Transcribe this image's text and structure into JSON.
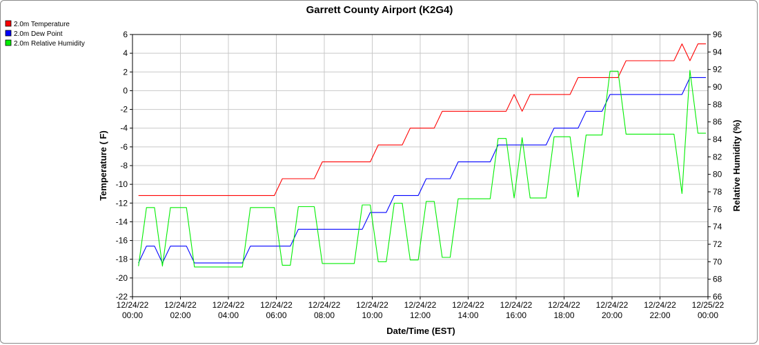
{
  "chart_data": {
    "type": "line",
    "title": "Garrett County Airport (K2G4)",
    "xlabel": "Date/Time (EST)",
    "ylabel": "Temperature ( F)",
    "y2label": "Relative Humidity (%)",
    "xlim": [
      "2022-12-24T00:00",
      "2022-12-25T00:00"
    ],
    "ylim": [
      -22,
      6
    ],
    "y2lim": [
      66,
      96
    ],
    "grid": true,
    "legend_position": "top-left",
    "x_ticks": [
      {
        "date": "12/24/22",
        "time": "00:00",
        "t": "2022-12-24T00:00"
      },
      {
        "date": "12/24/22",
        "time": "02:00",
        "t": "2022-12-24T02:00"
      },
      {
        "date": "12/24/22",
        "time": "04:00",
        "t": "2022-12-24T04:00"
      },
      {
        "date": "12/24/22",
        "time": "06:00",
        "t": "2022-12-24T06:00"
      },
      {
        "date": "12/24/22",
        "time": "08:00",
        "t": "2022-12-24T08:00"
      },
      {
        "date": "12/24/22",
        "time": "10:00",
        "t": "2022-12-24T10:00"
      },
      {
        "date": "12/24/22",
        "time": "12:00",
        "t": "2022-12-24T12:00"
      },
      {
        "date": "12/24/22",
        "time": "14:00",
        "t": "2022-12-24T14:00"
      },
      {
        "date": "12/24/22",
        "time": "16:00",
        "t": "2022-12-24T16:00"
      },
      {
        "date": "12/24/22",
        "time": "18:00",
        "t": "2022-12-24T18:00"
      },
      {
        "date": "12/24/22",
        "time": "20:00",
        "t": "2022-12-24T20:00"
      },
      {
        "date": "12/24/22",
        "time": "22:00",
        "t": "2022-12-24T22:00"
      },
      {
        "date": "12/25/22",
        "time": "00:00",
        "t": "2022-12-25T00:00"
      }
    ],
    "y_ticks": [
      "6",
      "4",
      "2",
      "0",
      "-2",
      "-4",
      "-6",
      "-8",
      "-10",
      "-12",
      "-14",
      "-16",
      "-18",
      "-20",
      "-22"
    ],
    "y2_ticks": [
      "96",
      "94",
      "92",
      "90",
      "88",
      "86",
      "84",
      "82",
      "80",
      "78",
      "76",
      "74",
      "72",
      "70",
      "68",
      "66"
    ],
    "series": [
      {
        "name": "2.0m Temperature",
        "axis": "left",
        "color": "#ff0000",
        "points": [
          [
            "2022-12-24T00:15",
            -11.2
          ],
          [
            "2022-12-24T05:55",
            -11.2
          ],
          [
            "2022-12-24T06:15",
            -9.4
          ],
          [
            "2022-12-24T07:35",
            -9.4
          ],
          [
            "2022-12-24T07:55",
            -7.6
          ],
          [
            "2022-12-24T09:55",
            -7.6
          ],
          [
            "2022-12-24T10:15",
            -5.8
          ],
          [
            "2022-12-24T11:15",
            -5.8
          ],
          [
            "2022-12-24T11:35",
            -4.0
          ],
          [
            "2022-12-24T12:35",
            -4.0
          ],
          [
            "2022-12-24T12:55",
            -2.2
          ],
          [
            "2022-12-24T15:35",
            -2.2
          ],
          [
            "2022-12-24T15:55",
            -0.4
          ],
          [
            "2022-12-24T16:15",
            -2.2
          ],
          [
            "2022-12-24T16:35",
            -0.4
          ],
          [
            "2022-12-24T18:15",
            -0.4
          ],
          [
            "2022-12-24T18:35",
            1.4
          ],
          [
            "2022-12-24T20:15",
            1.4
          ],
          [
            "2022-12-24T20:35",
            3.2
          ],
          [
            "2022-12-24T22:35",
            3.2
          ],
          [
            "2022-12-24T22:55",
            5.0
          ],
          [
            "2022-12-24T23:15",
            3.2
          ],
          [
            "2022-12-24T23:35",
            5.0
          ],
          [
            "2022-12-24T23:55",
            5.0
          ]
        ]
      },
      {
        "name": "2.0m Dew Point",
        "axis": "left",
        "color": "#0000ff",
        "points": [
          [
            "2022-12-24T00:15",
            -18.4
          ],
          [
            "2022-12-24T00:35",
            -16.6
          ],
          [
            "2022-12-24T00:55",
            -16.6
          ],
          [
            "2022-12-24T01:15",
            -18.4
          ],
          [
            "2022-12-24T01:35",
            -16.6
          ],
          [
            "2022-12-24T02:15",
            -16.6
          ],
          [
            "2022-12-24T02:35",
            -18.4
          ],
          [
            "2022-12-24T04:35",
            -18.4
          ],
          [
            "2022-12-24T04:55",
            -16.6
          ],
          [
            "2022-12-24T06:35",
            -16.6
          ],
          [
            "2022-12-24T06:55",
            -14.8
          ],
          [
            "2022-12-24T09:35",
            -14.8
          ],
          [
            "2022-12-24T09:55",
            -13.0
          ],
          [
            "2022-12-24T10:35",
            -13.0
          ],
          [
            "2022-12-24T10:55",
            -11.2
          ],
          [
            "2022-12-24T11:55",
            -11.2
          ],
          [
            "2022-12-24T12:15",
            -9.4
          ],
          [
            "2022-12-24T13:15",
            -9.4
          ],
          [
            "2022-12-24T13:35",
            -7.6
          ],
          [
            "2022-12-24T14:55",
            -7.6
          ],
          [
            "2022-12-24T15:15",
            -5.8
          ],
          [
            "2022-12-24T16:35",
            -5.8
          ],
          [
            "2022-12-24T16:55",
            -5.8
          ],
          [
            "2022-12-24T17:15",
            -5.8
          ],
          [
            "2022-12-24T17:35",
            -4.0
          ],
          [
            "2022-12-24T18:35",
            -4.0
          ],
          [
            "2022-12-24T18:55",
            -2.2
          ],
          [
            "2022-12-24T19:35",
            -2.2
          ],
          [
            "2022-12-24T19:55",
            -0.4
          ],
          [
            "2022-12-24T22:55",
            -0.4
          ],
          [
            "2022-12-24T23:15",
            1.4
          ],
          [
            "2022-12-24T23:55",
            1.4
          ]
        ]
      },
      {
        "name": "2.0m Relative Humidity",
        "axis": "right",
        "color": "#00ee00",
        "points": [
          [
            "2022-12-24T00:15",
            69.5
          ],
          [
            "2022-12-24T00:35",
            76.2
          ],
          [
            "2022-12-24T00:55",
            76.2
          ],
          [
            "2022-12-24T01:15",
            69.5
          ],
          [
            "2022-12-24T01:35",
            76.2
          ],
          [
            "2022-12-24T02:15",
            76.2
          ],
          [
            "2022-12-24T02:35",
            69.4
          ],
          [
            "2022-12-24T04:35",
            69.4
          ],
          [
            "2022-12-24T04:55",
            76.2
          ],
          [
            "2022-12-24T05:55",
            76.2
          ],
          [
            "2022-12-24T06:15",
            69.6
          ],
          [
            "2022-12-24T06:35",
            69.6
          ],
          [
            "2022-12-24T06:55",
            76.3
          ],
          [
            "2022-12-24T07:35",
            76.3
          ],
          [
            "2022-12-24T07:55",
            69.8
          ],
          [
            "2022-12-24T09:15",
            69.8
          ],
          [
            "2022-12-24T09:35",
            76.5
          ],
          [
            "2022-12-24T09:55",
            76.5
          ],
          [
            "2022-12-24T10:15",
            70.0
          ],
          [
            "2022-12-24T10:35",
            70.0
          ],
          [
            "2022-12-24T10:55",
            76.7
          ],
          [
            "2022-12-24T11:15",
            76.7
          ],
          [
            "2022-12-24T11:35",
            70.2
          ],
          [
            "2022-12-24T11:55",
            70.2
          ],
          [
            "2022-12-24T12:15",
            76.9
          ],
          [
            "2022-12-24T12:35",
            76.9
          ],
          [
            "2022-12-24T12:55",
            70.5
          ],
          [
            "2022-12-24T13:15",
            70.5
          ],
          [
            "2022-12-24T13:35",
            77.2
          ],
          [
            "2022-12-24T14:55",
            77.2
          ],
          [
            "2022-12-24T15:15",
            84.1
          ],
          [
            "2022-12-24T15:35",
            84.1
          ],
          [
            "2022-12-24T15:55",
            77.3
          ],
          [
            "2022-12-24T16:15",
            84.2
          ],
          [
            "2022-12-24T16:35",
            77.3
          ],
          [
            "2022-12-24T17:15",
            77.3
          ],
          [
            "2022-12-24T17:35",
            84.3
          ],
          [
            "2022-12-24T18:15",
            84.3
          ],
          [
            "2022-12-24T18:35",
            77.4
          ],
          [
            "2022-12-24T18:55",
            84.5
          ],
          [
            "2022-12-24T19:35",
            84.5
          ],
          [
            "2022-12-24T19:55",
            91.8
          ],
          [
            "2022-12-24T20:15",
            91.8
          ],
          [
            "2022-12-24T20:35",
            84.6
          ],
          [
            "2022-12-24T22:35",
            84.6
          ],
          [
            "2022-12-24T22:55",
            77.8
          ],
          [
            "2022-12-24T23:15",
            91.9
          ],
          [
            "2022-12-24T23:35",
            84.7
          ],
          [
            "2022-12-24T23:55",
            84.7
          ]
        ]
      }
    ]
  }
}
